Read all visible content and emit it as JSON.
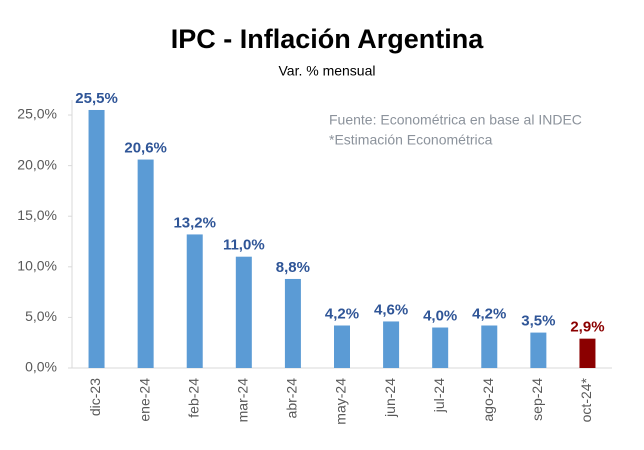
{
  "chart_data": {
    "type": "bar",
    "title": "IPC - Inflación Argentina",
    "subtitle": "Var. % mensual",
    "annotations": [
      "Fuente: Econométrica en base al INDEC",
      "*Estimación Econométrica"
    ],
    "categories": [
      "dic-23",
      "ene-24",
      "feb-24",
      "mar-24",
      "abr-24",
      "may-24",
      "jun-24",
      "jul-24",
      "ago-24",
      "sep-24",
      "oct-24*"
    ],
    "values": [
      25.5,
      20.6,
      13.2,
      11.0,
      8.8,
      4.2,
      4.6,
      4.0,
      4.2,
      3.5,
      2.9
    ],
    "value_labels": [
      "25,5%",
      "20,6%",
      "13,2%",
      "11,0%",
      "8,8%",
      "4,2%",
      "4,6%",
      "4,0%",
      "4,2%",
      "3,5%",
      "2,9%"
    ],
    "colors": [
      "#5b9bd5",
      "#5b9bd5",
      "#5b9bd5",
      "#5b9bd5",
      "#5b9bd5",
      "#5b9bd5",
      "#5b9bd5",
      "#5b9bd5",
      "#5b9bd5",
      "#5b9bd5",
      "#8b0000"
    ],
    "label_colors": [
      "#2f5597",
      "#2f5597",
      "#2f5597",
      "#2f5597",
      "#2f5597",
      "#2f5597",
      "#2f5597",
      "#2f5597",
      "#2f5597",
      "#2f5597",
      "#8b0000"
    ],
    "ylim": [
      0,
      27
    ],
    "yticks": [
      {
        "value": 0,
        "label": "0,0%"
      },
      {
        "value": 5,
        "label": "5,0%"
      },
      {
        "value": 10,
        "label": "10,0%"
      },
      {
        "value": 15,
        "label": "15,0%"
      },
      {
        "value": 20,
        "label": "20,0%"
      },
      {
        "value": 25,
        "label": "25,0%"
      }
    ],
    "grid": false
  }
}
